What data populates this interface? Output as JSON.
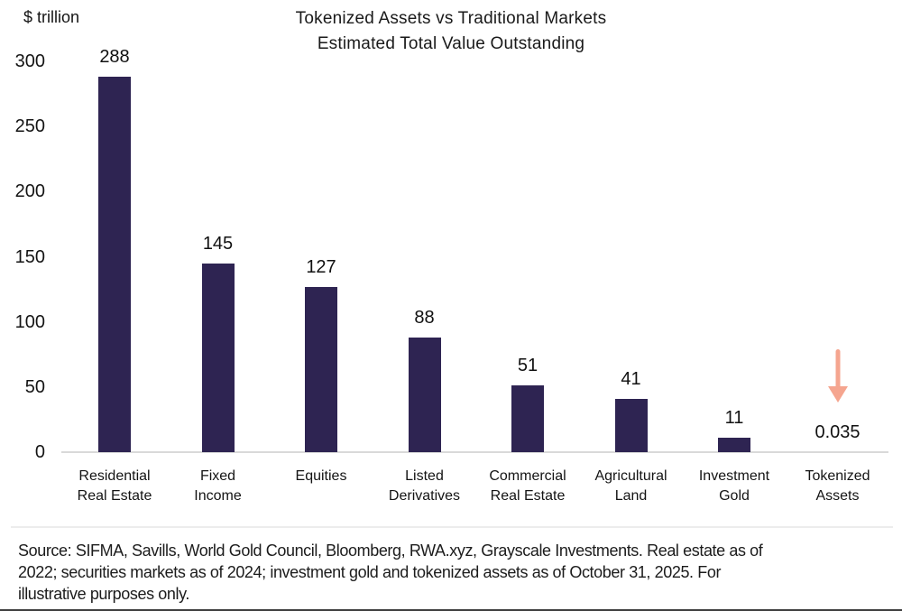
{
  "colors": {
    "bar": "#2E2452",
    "arrow": "#F5A58F",
    "axis_line": "#D9D9D9",
    "background": "#FFFFFF",
    "text": "#1A1A1A"
  },
  "chart_data": {
    "type": "bar",
    "title": "Tokenized Assets vs Traditional Markets",
    "subtitle": "Estimated Total Value Outstanding",
    "unit_label": "$ trillion",
    "categories": [
      "Residential Real Estate",
      "Fixed Income",
      "Equities",
      "Listed Derivatives",
      "Commercial Real Estate",
      "Agricultural Land",
      "Investment Gold",
      "Tokenized Assets"
    ],
    "category_lines": [
      [
        "Residential",
        "Real Estate"
      ],
      [
        "Fixed",
        "Income"
      ],
      [
        "Equities"
      ],
      [
        "Listed",
        "Derivatives"
      ],
      [
        "Commercial",
        "Real Estate"
      ],
      [
        "Agricultural",
        "Land"
      ],
      [
        "Investment",
        "Gold"
      ],
      [
        "Tokenized",
        "Assets"
      ]
    ],
    "values": [
      288,
      145,
      127,
      88,
      51,
      41,
      11,
      0.035
    ],
    "value_labels": [
      "288",
      "145",
      "127",
      "88",
      "51",
      "41",
      "11",
      "0.035"
    ],
    "ylim": [
      0,
      300
    ],
    "yticks": [
      0,
      50,
      100,
      150,
      200,
      250,
      300
    ],
    "grid": false,
    "legend": "none",
    "annotation": {
      "target": "Tokenized Assets",
      "icon": "down-arrow",
      "color": "#F5A58F"
    }
  },
  "footer": {
    "source_lines": [
      "Source: SIFMA, Savills, World Gold Council, Bloomberg, RWA.xyz, Grayscale Investments. Real estate as of",
      "2022; securities markets as of 2024; investment gold and tokenized assets as of October 31, 2025. For",
      "illustrative purposes only."
    ]
  }
}
